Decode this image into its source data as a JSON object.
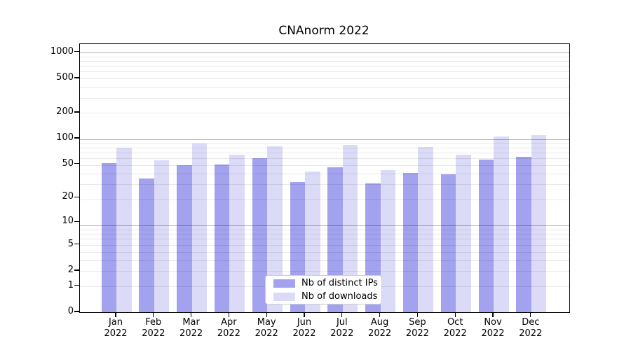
{
  "title": "CNAnorm 2022",
  "colors": {
    "ips_bar": "#a2a2ef",
    "downloads_bar": "#dbdbf8",
    "grid_major": "rgba(0,0,0,0.30)",
    "grid_minor": "rgba(0,0,0,0.09)",
    "axis": "#000000"
  },
  "legend": {
    "items": [
      {
        "key": "ips",
        "label": "Nb of distinct IPs"
      },
      {
        "key": "downloads",
        "label": "Nb of downloads"
      }
    ]
  },
  "y_axis": {
    "ticks": [
      {
        "label": "1000",
        "value": 1000
      },
      {
        "label": "500",
        "value": 500
      },
      {
        "label": "200",
        "value": 200
      },
      {
        "label": "100",
        "value": 100
      },
      {
        "label": "50",
        "value": 50
      },
      {
        "label": "20",
        "value": 20
      },
      {
        "label": "10",
        "value": 10
      },
      {
        "label": "5",
        "value": 5
      },
      {
        "label": "2",
        "value": 2
      },
      {
        "label": "1",
        "value": 1
      },
      {
        "label": "0",
        "value": 0
      }
    ]
  },
  "x_axis": {
    "months": [
      "Jan",
      "Feb",
      "Mar",
      "Apr",
      "May",
      "Jun",
      "Jul",
      "Aug",
      "Sep",
      "Oct",
      "Nov",
      "Dec"
    ],
    "year": "2022"
  },
  "chart_data": {
    "type": "bar",
    "title": "CNAnorm 2022",
    "categories": [
      "Jan 2022",
      "Feb 2022",
      "Mar 2022",
      "Apr 2022",
      "May 2022",
      "Jun 2022",
      "Jul 2022",
      "Aug 2022",
      "Sep 2022",
      "Oct 2022",
      "Nov 2022",
      "Dec 2022"
    ],
    "series": [
      {
        "name": "Nb of distinct IPs",
        "values": [
          52,
          34,
          49,
          50,
          59,
          31,
          46,
          30,
          40,
          38,
          57,
          61
        ]
      },
      {
        "name": "Nb of downloads",
        "values": [
          79,
          56,
          87,
          65,
          81,
          41,
          84,
          43,
          80,
          65,
          106,
          111
        ]
      }
    ],
    "xlabel": "",
    "ylabel": "",
    "yscale": "log10(1+x)",
    "ylim": [
      0,
      1240
    ],
    "grid": true,
    "legend_position": "lower center"
  }
}
